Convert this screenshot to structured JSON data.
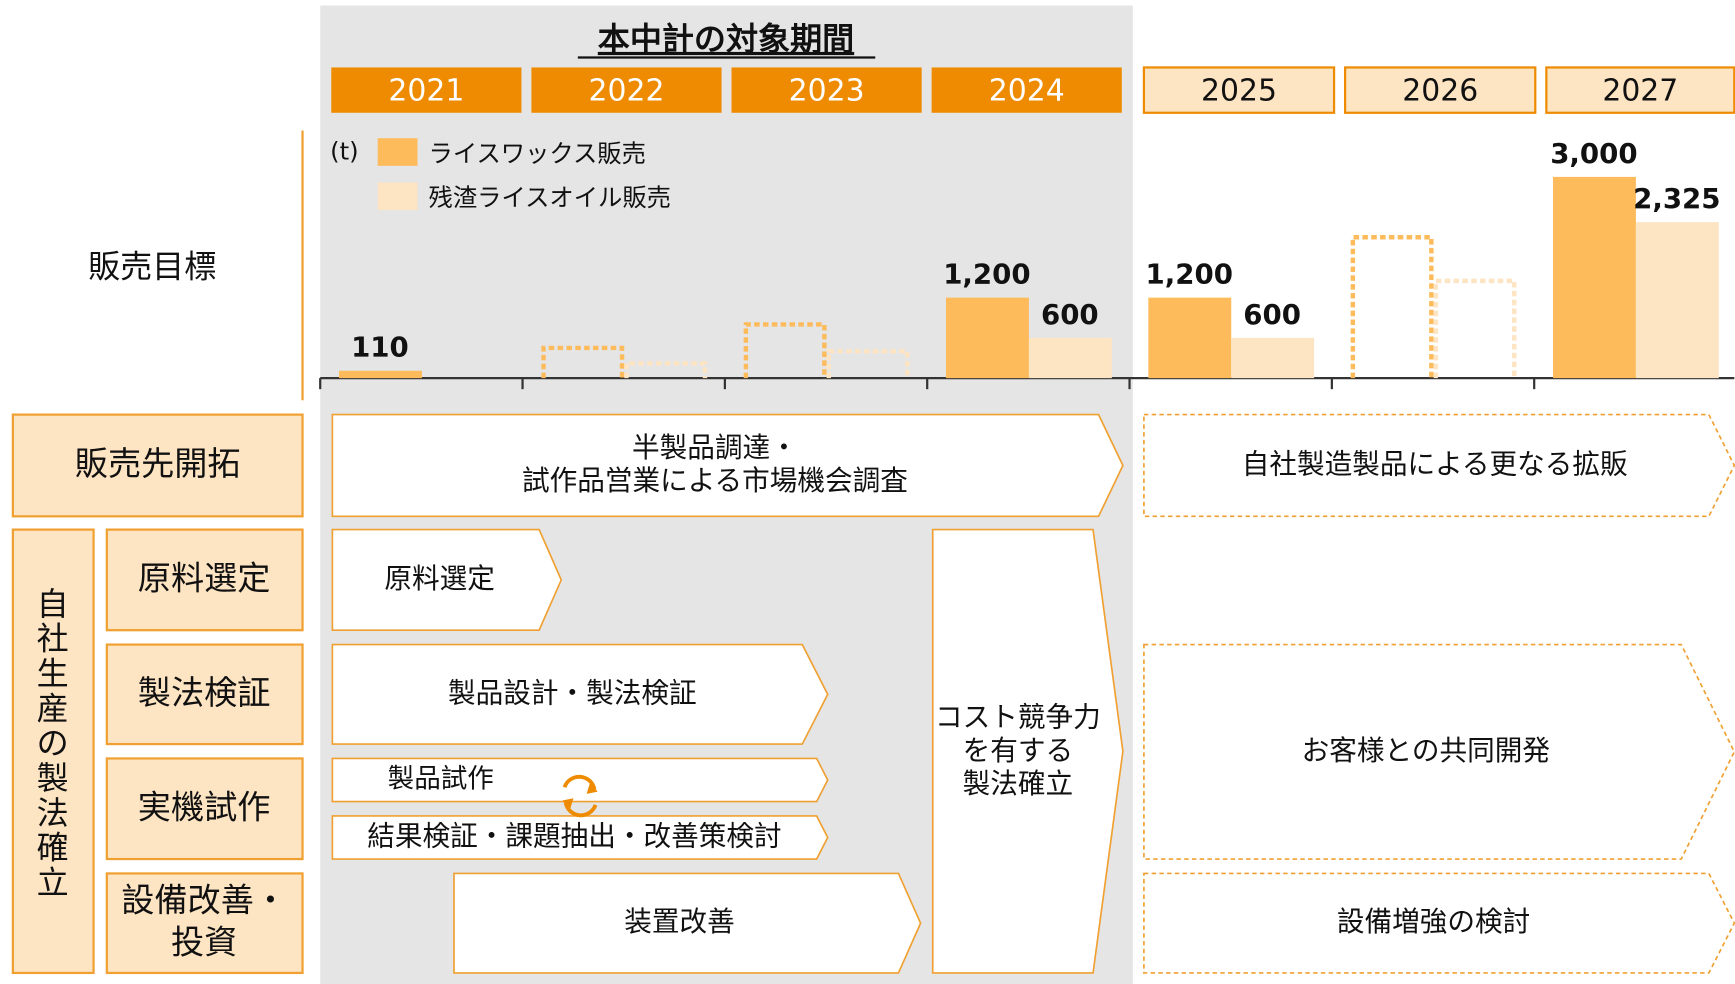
{
  "header": {
    "title": "本中計の対象期間"
  },
  "chart_data": {
    "type": "bar",
    "unit": "(t)",
    "categories": [
      "2021",
      "2022",
      "2023",
      "2024",
      "2025",
      "2026",
      "2027"
    ],
    "series": [
      {
        "name": "ライスワックス販売",
        "color": "#fdbb5c",
        "values": [
          110,
          450,
          800,
          1200,
          1200,
          2100,
          3000
        ],
        "value_labels": [
          "110",
          null,
          null,
          "1,200",
          "1,200",
          null,
          "3,000"
        ]
      },
      {
        "name": "残渣ライスオイル販売",
        "color": "#fde4c2",
        "values": [
          null,
          220,
          400,
          600,
          600,
          1450,
          2325
        ],
        "value_labels": [
          null,
          null,
          null,
          "600",
          "600",
          null,
          "2,325"
        ]
      }
    ],
    "ylim": [
      0,
      3000
    ]
  },
  "row_labels": {
    "sales_target": "販売目標",
    "market": "販売先開拓",
    "group": "自社生産の製法確立",
    "subs": [
      {
        "lines": [
          "原料選定"
        ]
      },
      {
        "lines": [
          "製法検証"
        ]
      },
      {
        "lines": [
          "実機試作"
        ]
      },
      {
        "lines": [
          "設備改善・",
          "投資"
        ]
      }
    ]
  },
  "arrows": [
    {
      "lines": [
        "半製品調達・",
        "試作品営業による市場機会調査"
      ]
    },
    {
      "lines": [
        "自社製造製品による更なる拡販"
      ]
    },
    {
      "lines": [
        "原料選定"
      ]
    },
    {
      "lines": [
        "製品設計・製法検証"
      ]
    },
    {
      "lines": [
        "製品試作"
      ]
    },
    {
      "lines": [
        "結果検証・課題抽出・改善策検討"
      ]
    },
    {
      "lines": [
        "装置改善"
      ]
    },
    {
      "lines": [
        "コスト競争力",
        "を有する",
        "製法確立"
      ]
    },
    {
      "lines": [
        "お客様との共同開発"
      ]
    },
    {
      "lines": [
        "設備増強の検討"
      ]
    }
  ]
}
